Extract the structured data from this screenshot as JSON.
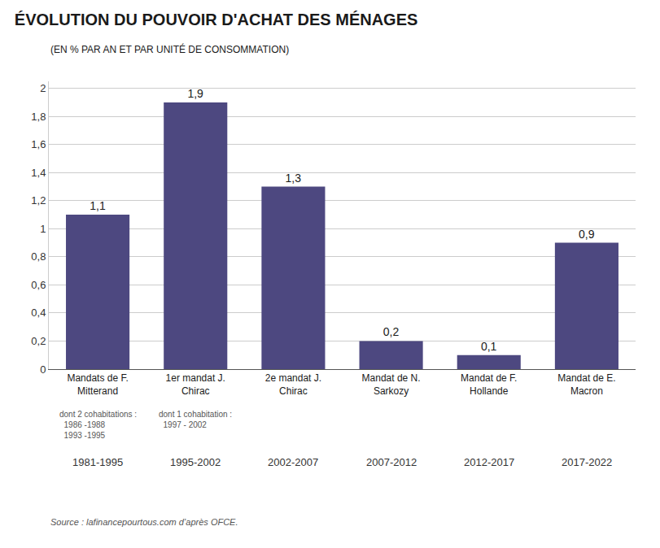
{
  "chart_data": {
    "type": "bar",
    "title": "ÉVOLUTION DU POUVOIR D'ACHAT DES MÉNAGES",
    "subtitle": "(EN % PAR AN ET PAR UNITÉ DE CONSOMMATION)",
    "categories": [
      "Mandats de F.\nMitterand",
      "1er mandat J.\nChirac",
      "2e mandat J.\nChirac",
      "Mandat de N.\nSarkozy",
      "Mandat de F.\nHollande",
      "Mandat de E.\nMacron"
    ],
    "values": [
      1.1,
      1.9,
      1.3,
      0.2,
      0.1,
      0.9
    ],
    "value_labels": [
      "1,1",
      "1,9",
      "1,3",
      "0,2",
      "0,1",
      "0,9"
    ],
    "data_labels": true,
    "color": "#4d4880",
    "ylim": [
      0,
      2.05
    ],
    "yticks": [
      0,
      {
        "value": 0.2,
        "label": "0,2"
      },
      {
        "value": 0.4,
        "label": "0,4"
      },
      {
        "value": 0.6,
        "label": "0,6"
      },
      {
        "value": 0.8,
        "label": "0,8"
      },
      1,
      {
        "value": 1.2,
        "label": "1,2"
      },
      {
        "value": 1.4,
        "label": "1,4"
      },
      {
        "value": 1.6,
        "label": "1,6"
      },
      {
        "value": 1.8,
        "label": "1,8"
      },
      2
    ],
    "grid": true,
    "sub_annotations": [
      {
        "text": "dont 2 cohabitations :\n  1986 -1988\n  1993 -1995",
        "category": "Mandats de F.\nMitterand"
      },
      {
        "text": "dont 1 cohabitation :\n  1997 - 2002",
        "category": "1er mandat J.\nChirac"
      }
    ],
    "year_labels": [
      "1981-1995",
      "1995-2002",
      "2002-2007",
      "2007-2012",
      "2012-2017",
      "2017-2022"
    ],
    "source": "Source : lafinancepourtous.com d’après OFCE."
  }
}
